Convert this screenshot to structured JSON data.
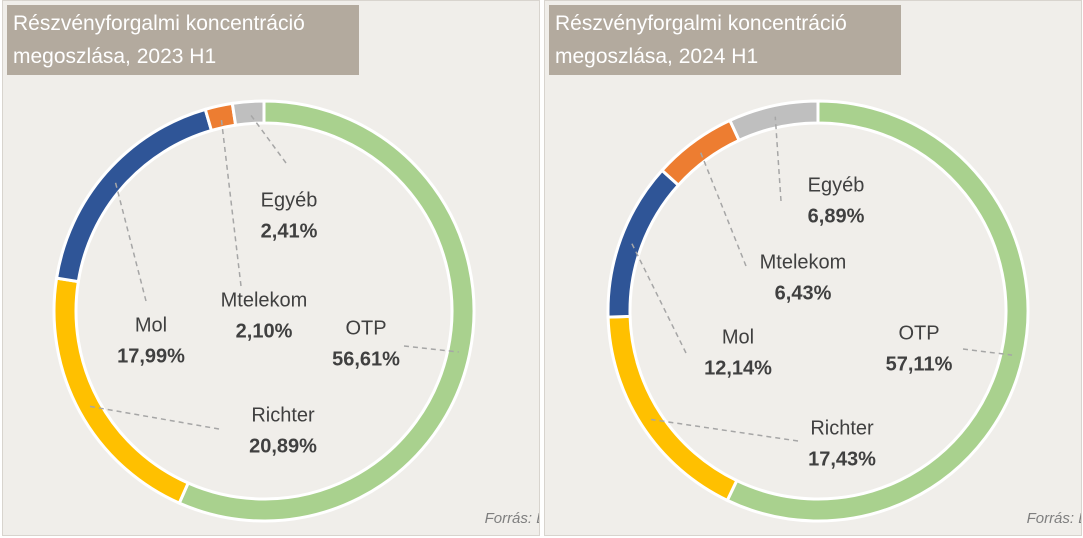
{
  "chart_data": [
    {
      "type": "pie",
      "donut": true,
      "title": "Részvényforgalmi koncentráció megoszlása, 2023 H1",
      "categories": [
        "OTP",
        "Richter",
        "Mol",
        "Mtelekom",
        "Egyéb"
      ],
      "values": [
        56.61,
        20.89,
        17.99,
        2.1,
        2.41
      ],
      "value_labels": [
        "56,61%",
        "20,89%",
        "17,99%",
        "2,10%",
        "2,41%"
      ],
      "colors": [
        "#a9d18e",
        "#ffc000",
        "#2f5597",
        "#ed7d31",
        "#bfbfbf"
      ],
      "source": "Forrás: BÉT"
    },
    {
      "type": "pie",
      "donut": true,
      "title": "Részvényforgalmi koncentráció megoszlása, 2024 H1",
      "categories": [
        "OTP",
        "Richter",
        "Mol",
        "Mtelekom",
        "Egyéb"
      ],
      "values": [
        57.11,
        17.43,
        12.14,
        6.43,
        6.89
      ],
      "value_labels": [
        "57,11%",
        "17,43%",
        "12,14%",
        "6,43%",
        "6,89%"
      ],
      "colors": [
        "#a9d18e",
        "#ffc000",
        "#2f5597",
        "#ed7d31",
        "#bfbfbf"
      ],
      "source": "Forrás: BÉT"
    }
  ]
}
